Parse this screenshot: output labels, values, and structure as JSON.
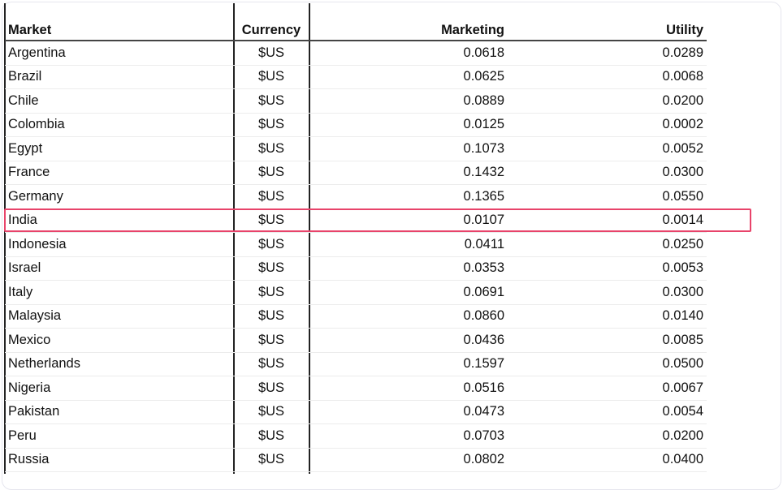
{
  "table": {
    "headers": [
      "Market",
      "Currency",
      "Marketing",
      "Utility"
    ],
    "rows": [
      [
        "Argentina",
        "$US",
        "0.0618",
        "0.0289"
      ],
      [
        "Brazil",
        "$US",
        "0.0625",
        "0.0068"
      ],
      [
        "Chile",
        "$US",
        "0.0889",
        "0.0200"
      ],
      [
        "Colombia",
        "$US",
        "0.0125",
        "0.0002"
      ],
      [
        "Egypt",
        "$US",
        "0.1073",
        "0.0052"
      ],
      [
        "France",
        "$US",
        "0.1432",
        "0.0300"
      ],
      [
        "Germany",
        "$US",
        "0.1365",
        "0.0550"
      ],
      [
        "India",
        "$US",
        "0.0107",
        "0.0014"
      ],
      [
        "Indonesia",
        "$US",
        "0.0411",
        "0.0250"
      ],
      [
        "Israel",
        "$US",
        "0.0353",
        "0.0053"
      ],
      [
        "Italy",
        "$US",
        "0.0691",
        "0.0300"
      ],
      [
        "Malaysia",
        "$US",
        "0.0860",
        "0.0140"
      ],
      [
        "Mexico",
        "$US",
        "0.0436",
        "0.0085"
      ],
      [
        "Netherlands",
        "$US",
        "0.1597",
        "0.0500"
      ],
      [
        "Nigeria",
        "$US",
        "0.0516",
        "0.0067"
      ],
      [
        "Pakistan",
        "$US",
        "0.0473",
        "0.0054"
      ],
      [
        "Peru",
        "$US",
        "0.0703",
        "0.0200"
      ],
      [
        "Russia",
        "$US",
        "0.0802",
        "0.0400"
      ]
    ],
    "highlighted_row": "India",
    "highlight_color": "#e8436a"
  }
}
